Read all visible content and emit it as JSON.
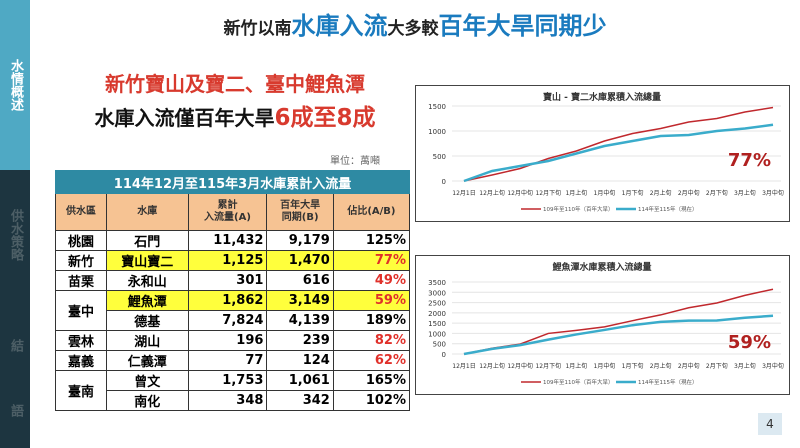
{
  "sidebar": {
    "items": [
      {
        "label": "水情概述",
        "active": true
      },
      {
        "label": "供水策略"
      },
      {
        "label": "結"
      },
      {
        "label": "語"
      }
    ]
  },
  "title": {
    "p1": "新竹以南",
    "p2": "水庫入流",
    "p3": "大多較",
    "p4": "百年大旱同期少"
  },
  "subtitle": {
    "line1": "新竹寶山及寶二、臺中鯉魚潭",
    "line2a": "水庫入流僅百年大旱",
    "line2b": "6成至8成"
  },
  "unit": "單位：萬噸",
  "table": {
    "caption": "114年12月至115年3月水庫累計入流量",
    "headers": [
      "供水區",
      "水庫",
      "累計\n入流量(A)",
      "百年大旱\n同期(B)",
      "佔比(A/B)"
    ],
    "rows": [
      {
        "region": "桃園",
        "span": 1,
        "reservoir": "石門",
        "a": "11,432",
        "b": "9,179",
        "ratio": "125%"
      },
      {
        "region": "新竹",
        "span": 1,
        "reservoir": "寶山寶二",
        "a": "1,125",
        "b": "1,470",
        "ratio": "77%",
        "highlight": true,
        "red": true
      },
      {
        "region": "苗栗",
        "span": 1,
        "reservoir": "永和山",
        "a": "301",
        "b": "616",
        "ratio": "49%",
        "red": true
      },
      {
        "region": "臺中",
        "span": 2,
        "reservoir": "鯉魚潭",
        "a": "1,862",
        "b": "3,149",
        "ratio": "59%",
        "highlight": true,
        "red": true
      },
      {
        "region": "",
        "span": 0,
        "reservoir": "德基",
        "a": "7,824",
        "b": "4,139",
        "ratio": "189%"
      },
      {
        "region": "雲林",
        "span": 1,
        "reservoir": "湖山",
        "a": "196",
        "b": "239",
        "ratio": "82%",
        "red": true
      },
      {
        "region": "嘉義",
        "span": 1,
        "reservoir": "仁義潭",
        "a": "77",
        "b": "124",
        "ratio": "62%",
        "red": true
      },
      {
        "region": "臺南",
        "span": 2,
        "reservoir": "曾文",
        "a": "1,753",
        "b": "1,061",
        "ratio": "165%"
      },
      {
        "region": "",
        "span": 0,
        "reservoir": "南化",
        "a": "348",
        "b": "342",
        "ratio": "102%"
      }
    ]
  },
  "colors": {
    "drought": "#c0282d",
    "current": "#3aaccb",
    "highlight": "#ffff3c",
    "accent": "#1a7bbf"
  },
  "chart_data": [
    {
      "type": "line",
      "title": "寶山 - 寶二水庫累積入流總量",
      "categories": [
        "12月1日",
        "12月上旬",
        "12月中旬",
        "12月下旬",
        "1月上旬",
        "1月中旬",
        "1月下旬",
        "2月上旬",
        "2月中旬",
        "2月下旬",
        "3月上旬",
        "3月中旬"
      ],
      "ylim": [
        0,
        1500
      ],
      "yticks": [
        0,
        500,
        1000,
        1500
      ],
      "grid": true,
      "legend": "bottom",
      "annotation": "77%",
      "series": [
        {
          "name": "109年至110年（百年大旱）",
          "values": [
            0,
            120,
            250,
            450,
            600,
            800,
            950,
            1050,
            1180,
            1250,
            1380,
            1470
          ]
        },
        {
          "name": "114年至115年（現在）",
          "values": [
            0,
            200,
            300,
            400,
            550,
            700,
            800,
            900,
            920,
            1000,
            1050,
            1125
          ]
        }
      ]
    },
    {
      "type": "line",
      "title": "鯉魚潭水庫累積入流總量",
      "categories": [
        "12月1日",
        "12月上旬",
        "12月中旬",
        "12月下旬",
        "1月上旬",
        "1月中旬",
        "1月下旬",
        "2月上旬",
        "2月中旬",
        "2月下旬",
        "3月上旬",
        "3月中旬"
      ],
      "ylim": [
        0,
        3500
      ],
      "yticks": [
        0,
        500,
        1000,
        1500,
        2000,
        2500,
        3000,
        3500
      ],
      "grid": true,
      "legend": "bottom",
      "annotation": "59%",
      "series": [
        {
          "name": "109年至110年（百年大旱）",
          "values": [
            0,
            280,
            480,
            1000,
            1150,
            1320,
            1620,
            1900,
            2250,
            2480,
            2850,
            3149
          ]
        },
        {
          "name": "114年至115年（現在）",
          "values": [
            0,
            250,
            430,
            700,
            950,
            1170,
            1400,
            1560,
            1620,
            1630,
            1760,
            1862
          ]
        }
      ]
    }
  ],
  "page_number": "4"
}
